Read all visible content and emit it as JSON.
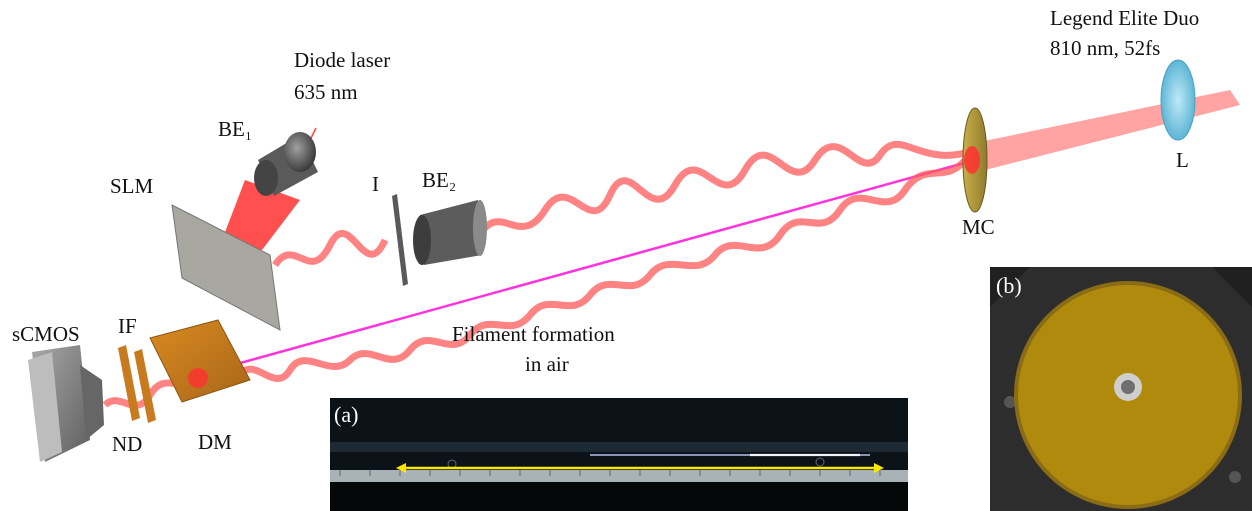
{
  "labels": {
    "source_name": "Legend Elite Duo",
    "source_spec": "810 nm, 52fs",
    "diode_name": "Diode laser",
    "diode_wavelength": "635 nm",
    "be1": "BE₁",
    "be2": "BE₂",
    "slm": "SLM",
    "iris": "I",
    "mc": "MC",
    "lens": "L",
    "scmos": "sCMOS",
    "if": "IF",
    "nd": "ND",
    "dm": "DM",
    "filament_line1": "Filament formation",
    "filament_line2": "in air"
  },
  "insets": {
    "a": {
      "label": "(a)"
    },
    "b": {
      "label": "(b)"
    }
  },
  "colors": {
    "beam": "#ff5a5a",
    "filament": "#ff33dd",
    "component_gray": "#8c8c8c",
    "filter_orange": "#c87a1e",
    "lens_blue": "#7fc6e0",
    "mirror_yellow": "#b08a0c",
    "arrow_yellow": "#ffe600"
  }
}
